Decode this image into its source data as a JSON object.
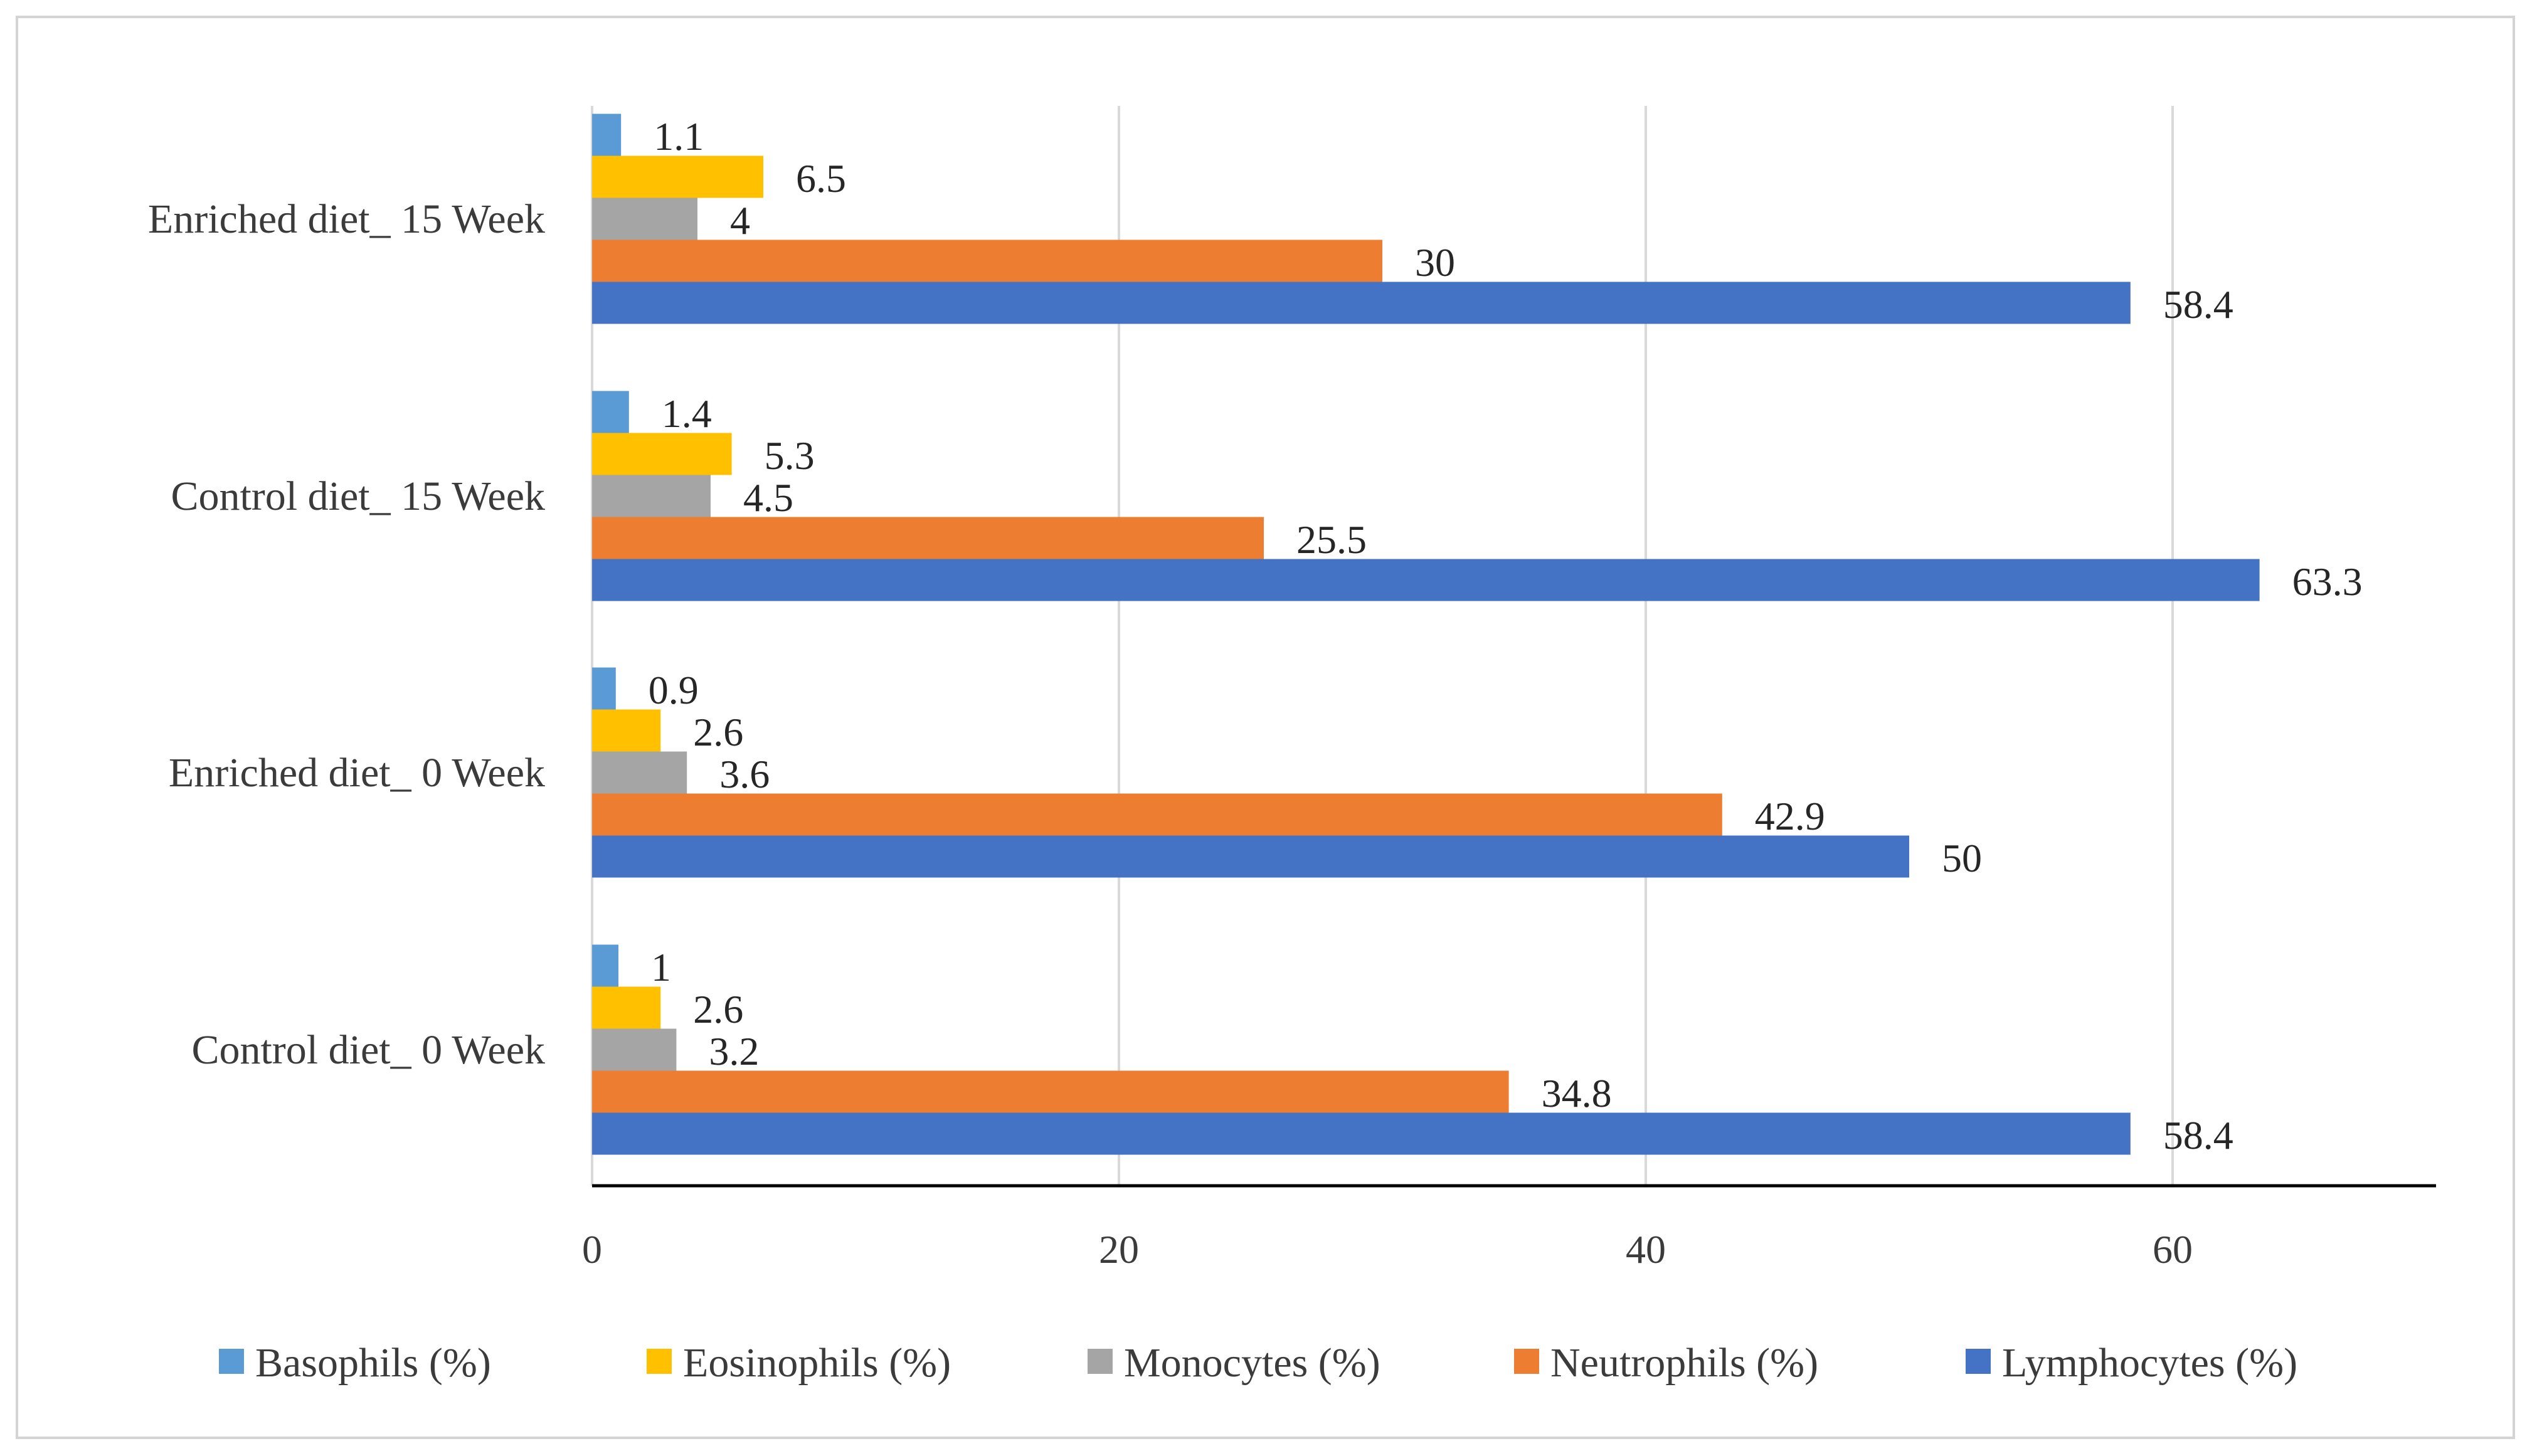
{
  "chart_data": {
    "type": "bar",
    "orientation": "horizontal",
    "title": "",
    "xlabel": "",
    "ylabel": "",
    "xlim": [
      0,
      70
    ],
    "xticks": [
      0,
      20,
      40,
      60
    ],
    "grid": true,
    "legend_position": "bottom",
    "categories": [
      "Control diet_ 0 Week",
      "Enriched diet_ 0 Week",
      "Control diet_ 15 Week",
      "Enriched diet_ 15 Week"
    ],
    "series": [
      {
        "name": "Basophils (%)",
        "color": "#5b9bd5",
        "values": [
          1,
          0.9,
          1.4,
          1.1
        ],
        "labels": [
          "1",
          "0.9",
          "1.4",
          "1.1"
        ]
      },
      {
        "name": "Eosinophils (%)",
        "color": "#ffc000",
        "values": [
          2.6,
          2.6,
          5.3,
          6.5
        ],
        "labels": [
          "2.6",
          "2.6",
          "5.3",
          "6.5"
        ]
      },
      {
        "name": "Monocytes (%)",
        "color": "#a5a5a5",
        "values": [
          3.2,
          3.6,
          4.5,
          4
        ],
        "labels": [
          "3.2",
          "3.6",
          "4.5",
          "4"
        ]
      },
      {
        "name": "Neutrophils (%)",
        "color": "#ed7d31",
        "values": [
          34.8,
          42.9,
          25.5,
          30
        ],
        "labels": [
          "34.8",
          "42.9",
          "25.5",
          "30"
        ]
      },
      {
        "name": "Lymphocytes (%)",
        "color": "#4472c4",
        "values": [
          58.4,
          50,
          63.3,
          58.4
        ],
        "labels": [
          "58.4",
          "50",
          "63.3",
          "58.4"
        ]
      }
    ]
  }
}
